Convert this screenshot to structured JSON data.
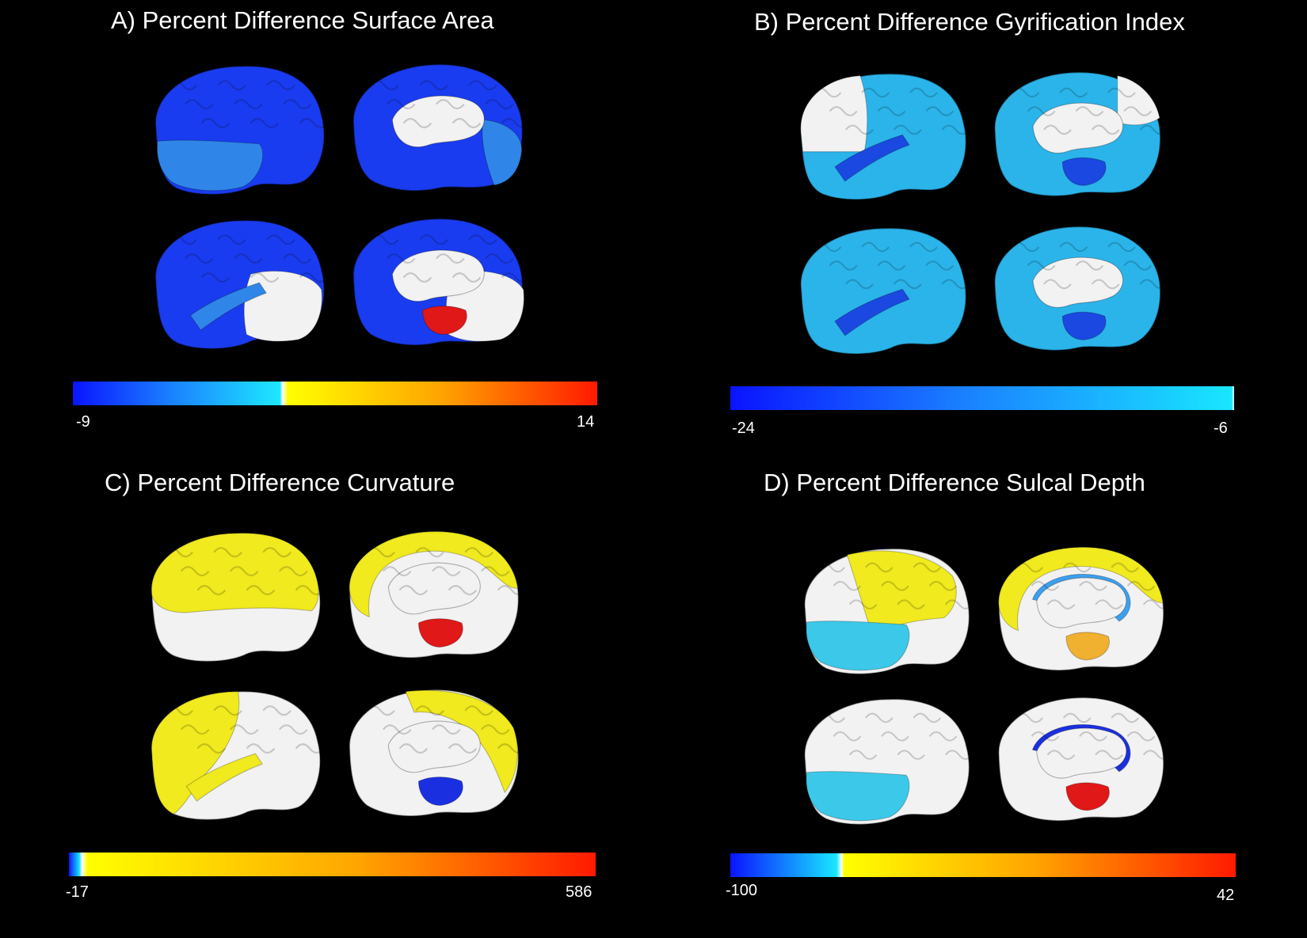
{
  "panels": [
    {
      "key": "A",
      "title": "A) Percent Difference Surface Area",
      "colorbar": {
        "min": "-9",
        "max": "14",
        "stops": [
          [
            "#0a14ff",
            0
          ],
          [
            "#1a7dff",
            0.18
          ],
          [
            "#1ee8ff",
            0.395
          ],
          [
            "#ffffff",
            0.4
          ],
          [
            "#ffff00",
            0.41
          ],
          [
            "#ffa500",
            0.7
          ],
          [
            "#ff1a00",
            1
          ]
        ]
      },
      "brains": [
        {
          "view": "lateral-left",
          "base": "#1a3cf0",
          "regions": [
            {
              "c": "#2f86e8",
              "p": "temporal"
            }
          ]
        },
        {
          "view": "medial-left",
          "base": "#1a3cf0",
          "regions": [
            {
              "c": "#2f86e8",
              "p": "occipital"
            }
          ]
        },
        {
          "view": "lateral-right",
          "base": "#1a3cf0",
          "regions": [
            {
              "c": "#f2f2f2",
              "p": "posterior"
            },
            {
              "c": "#2f86e8",
              "p": "temporal-strip"
            }
          ]
        },
        {
          "view": "medial-right",
          "base": "#1a3cf0",
          "regions": [
            {
              "c": "#f2f2f2",
              "p": "posterior"
            },
            {
              "c": "#e01818",
              "p": "bottom-patch"
            }
          ]
        }
      ]
    },
    {
      "key": "B",
      "title": "B) Percent Difference Gyrification Index",
      "colorbar": {
        "min": "-24",
        "max": "-6",
        "stops": [
          [
            "#0a14ff",
            0
          ],
          [
            "#1a7dff",
            0.45
          ],
          [
            "#19e6ff",
            0.995
          ],
          [
            "#ffffff",
            1
          ]
        ]
      },
      "brains": [
        {
          "view": "lateral-left",
          "base": "#2bb4ea",
          "regions": [
            {
              "c": "#f2f2f2",
              "p": "frontal"
            },
            {
              "c": "#1a48e0",
              "p": "temporal-strip"
            }
          ]
        },
        {
          "view": "medial-left",
          "base": "#2bb4ea",
          "regions": [
            {
              "c": "#f2f2f2",
              "p": "posterior-top"
            },
            {
              "c": "#1a48e0",
              "p": "bottom-patch"
            }
          ]
        },
        {
          "view": "lateral-right",
          "base": "#2bb4ea",
          "regions": [
            {
              "c": "#1a48e0",
              "p": "temporal-strip"
            }
          ]
        },
        {
          "view": "medial-right",
          "base": "#2bb4ea",
          "regions": [
            {
              "c": "#1a48e0",
              "p": "bottom-patch"
            }
          ]
        }
      ]
    },
    {
      "key": "C",
      "title": "C) Percent Difference Curvature",
      "colorbar": {
        "min": "-17",
        "max": "586",
        "stops": [
          [
            "#0a14ff",
            0
          ],
          [
            "#19e6ff",
            0.02
          ],
          [
            "#ffffff",
            0.025
          ],
          [
            "#ffff00",
            0.035
          ],
          [
            "#ffa500",
            0.55
          ],
          [
            "#ff1a00",
            1
          ]
        ]
      },
      "brains": [
        {
          "view": "lateral-left",
          "base": "#f2f2f2",
          "regions": [
            {
              "c": "#f0ea1e",
              "p": "top"
            }
          ]
        },
        {
          "view": "medial-left",
          "base": "#f2f2f2",
          "regions": [
            {
              "c": "#f0ea1e",
              "p": "rim"
            },
            {
              "c": "#e01818",
              "p": "bottom-patch"
            }
          ]
        },
        {
          "view": "lateral-right",
          "base": "#f2f2f2",
          "regions": [
            {
              "c": "#f0ea1e",
              "p": "front"
            },
            {
              "c": "#f0ea1e",
              "p": "temporal-strip"
            }
          ]
        },
        {
          "view": "medial-right",
          "base": "#f2f2f2",
          "regions": [
            {
              "c": "#f0ea1e",
              "p": "rim-right"
            },
            {
              "c": "#1a30e0",
              "p": "bottom-patch"
            }
          ]
        }
      ]
    },
    {
      "key": "D",
      "title": "D) Percent Difference Sulcal Depth",
      "colorbar": {
        "min": "-100",
        "max": "42",
        "stops": [
          [
            "#0a14ff",
            0
          ],
          [
            "#19e6ff",
            0.21
          ],
          [
            "#ffffff",
            0.22
          ],
          [
            "#ffff00",
            0.225
          ],
          [
            "#ffa500",
            0.6
          ],
          [
            "#ff1a00",
            1
          ]
        ]
      },
      "brains": [
        {
          "view": "lateral-left",
          "base": "#f2f2f2",
          "regions": [
            {
              "c": "#f0ea1e",
              "p": "top-mid"
            },
            {
              "c": "#3cc8e8",
              "p": "temporal"
            }
          ]
        },
        {
          "view": "medial-left",
          "base": "#f2f2f2",
          "regions": [
            {
              "c": "#f0ea1e",
              "p": "rim"
            },
            {
              "c": "#3ca0f0",
              "p": "inner-ring"
            },
            {
              "c": "#f0b030",
              "p": "bottom-patch"
            }
          ]
        },
        {
          "view": "lateral-right",
          "base": "#f2f2f2",
          "regions": [
            {
              "c": "#3cc8e8",
              "p": "temporal"
            }
          ]
        },
        {
          "view": "medial-right",
          "base": "#f2f2f2",
          "regions": [
            {
              "c": "#1a30e0",
              "p": "inner-ring"
            },
            {
              "c": "#e01818",
              "p": "bottom-patch"
            }
          ]
        }
      ]
    }
  ]
}
